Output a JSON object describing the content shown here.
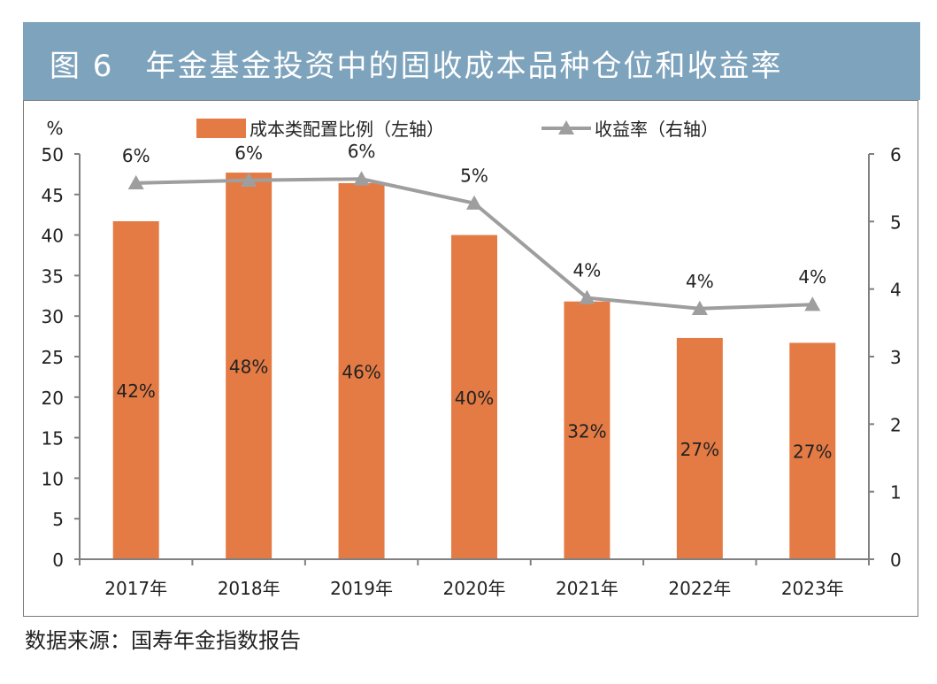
{
  "title": "图 6　年金基金投资中的固收成本品种仓位和收益率",
  "source": "数据来源：国寿年金指数报告",
  "chart_data": {
    "type": "bar",
    "categories": [
      "2017年",
      "2018年",
      "2019年",
      "2020年",
      "2021年",
      "2022年",
      "2023年"
    ],
    "series": [
      {
        "name": "成本类配置比例（左轴）",
        "type": "bar",
        "axis": "left",
        "values": [
          41.7,
          47.7,
          46.4,
          40.0,
          31.8,
          27.3,
          26.7
        ],
        "labels": [
          "42%",
          "48%",
          "46%",
          "40%",
          "32%",
          "27%",
          "27%"
        ],
        "color": "#e47b45"
      },
      {
        "name": "收益率（右轴）",
        "type": "line",
        "axis": "right",
        "marker": "triangle",
        "values": [
          5.57,
          5.61,
          5.63,
          5.27,
          3.87,
          3.71,
          3.77
        ],
        "labels": [
          "6%",
          "6%",
          "6%",
          "5%",
          "4%",
          "4%",
          "4%"
        ],
        "color": "#9e9e9e"
      }
    ],
    "y_left": {
      "label": "%",
      "min": 0,
      "max": 50,
      "ticks": [
        0,
        5,
        10,
        15,
        20,
        25,
        30,
        35,
        40,
        45,
        50
      ]
    },
    "y_right": {
      "min": 0,
      "max": 6,
      "ticks": [
        0,
        1,
        2,
        3,
        4,
        5,
        6
      ]
    },
    "legend": "top-center",
    "grid": false
  }
}
